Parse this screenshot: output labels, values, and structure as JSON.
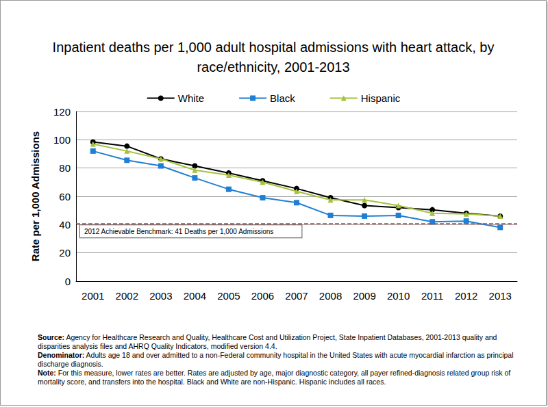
{
  "chart_data": {
    "type": "line",
    "title": "Inpatient deaths per 1,000 adult hospital admissions with heart attack, by race/ethnicity, 2001-2013",
    "y_label": "Rate per 1,000 Admissions",
    "categories": [
      "2001",
      "2002",
      "2003",
      "2004",
      "2005",
      "2006",
      "2007",
      "2008",
      "2009",
      "2010",
      "2011",
      "2012",
      "2013"
    ],
    "series": [
      {
        "name": "White",
        "color": "#000000",
        "marker": "circle",
        "values": [
          98.5,
          95.5,
          86.5,
          81.5,
          76.5,
          71,
          65.5,
          59,
          53.5,
          52,
          50.5,
          48,
          46
        ]
      },
      {
        "name": "Black",
        "color": "#1f7fd4",
        "marker": "square",
        "values": [
          92,
          85.5,
          81.5,
          73,
          65,
          59,
          55.5,
          46.5,
          46,
          46.5,
          42,
          42.5,
          38
        ]
      },
      {
        "name": "Hispanic",
        "color": "#a4c23c",
        "marker": "triangle",
        "values": [
          97,
          92,
          86.5,
          78.5,
          75,
          70,
          63.5,
          57.5,
          57.5,
          53.5,
          48,
          47.5,
          46
        ]
      }
    ],
    "ylim": [
      0,
      120
    ],
    "yticks": [
      0,
      20,
      40,
      60,
      80,
      100,
      120
    ],
    "grid": true,
    "legend": "top",
    "annotations": [
      {
        "y": 41,
        "text": "2012 Achievable Benchmark: 41 Deaths per 1,000 Admissions",
        "color": "#e03030",
        "line_style": "dashed"
      }
    ],
    "notes": [
      {
        "label": "Source:",
        "text": "Agency for Healthcare Research and Quality, Healthcare Cost and Utilization Project, State Inpatient Databases, 2001-2013 quality and disparities analysis files and AHRQ Quality Indicators, modified version 4.4."
      },
      {
        "label": "Denominator:",
        "text": "Adults age 18 and over admitted to a non-Federal community hospital in the United States with acute myocardial infarction as principal discharge diagnosis."
      },
      {
        "label": "Note:",
        "text": "For this measure, lower rates are better. Rates are adjusted by age, major diagnostic category, all payer refined-diagnosis related group risk of mortality score, and transfers into the hospital. Black and White are non-Hispanic. Hispanic  includes all races."
      }
    ]
  }
}
